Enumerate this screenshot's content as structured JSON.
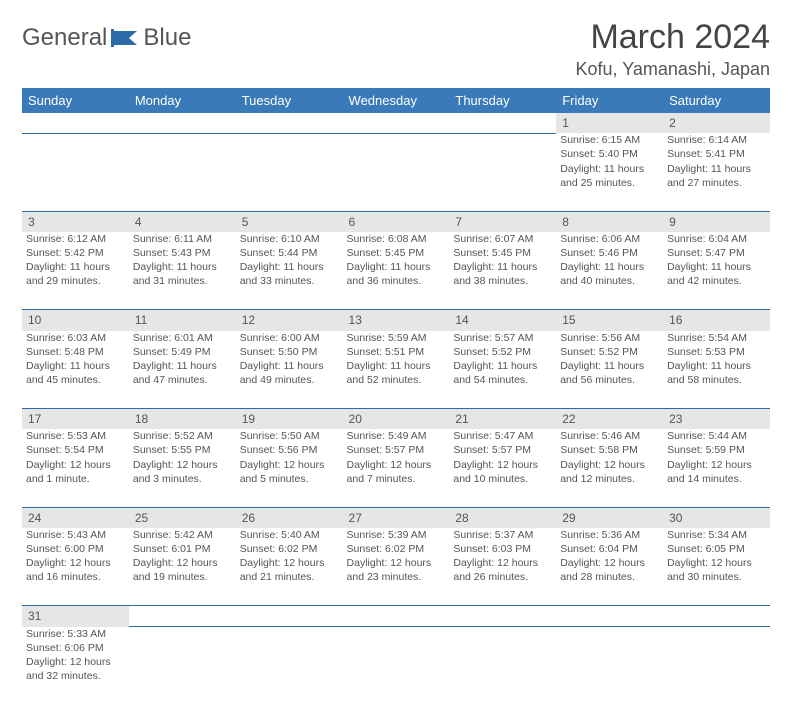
{
  "logo": {
    "word1": "General",
    "word2": "Blue"
  },
  "header": {
    "month_title": "March 2024",
    "location": "Kofu, Yamanashi, Japan"
  },
  "colors": {
    "header_bg": "#3a7ab8",
    "header_text": "#ffffff",
    "daynum_bg": "#e6e6e6",
    "cell_border": "#2d6aa8",
    "body_text": "#555555",
    "logo_blue": "#2d6aa8"
  },
  "daysOfWeek": [
    "Sunday",
    "Monday",
    "Tuesday",
    "Wednesday",
    "Thursday",
    "Friday",
    "Saturday"
  ],
  "weeks": [
    [
      null,
      null,
      null,
      null,
      null,
      {
        "n": "1",
        "sr": "6:15 AM",
        "ss": "5:40 PM",
        "dl": "11 hours and 25 minutes."
      },
      {
        "n": "2",
        "sr": "6:14 AM",
        "ss": "5:41 PM",
        "dl": "11 hours and 27 minutes."
      }
    ],
    [
      {
        "n": "3",
        "sr": "6:12 AM",
        "ss": "5:42 PM",
        "dl": "11 hours and 29 minutes."
      },
      {
        "n": "4",
        "sr": "6:11 AM",
        "ss": "5:43 PM",
        "dl": "11 hours and 31 minutes."
      },
      {
        "n": "5",
        "sr": "6:10 AM",
        "ss": "5:44 PM",
        "dl": "11 hours and 33 minutes."
      },
      {
        "n": "6",
        "sr": "6:08 AM",
        "ss": "5:45 PM",
        "dl": "11 hours and 36 minutes."
      },
      {
        "n": "7",
        "sr": "6:07 AM",
        "ss": "5:45 PM",
        "dl": "11 hours and 38 minutes."
      },
      {
        "n": "8",
        "sr": "6:06 AM",
        "ss": "5:46 PM",
        "dl": "11 hours and 40 minutes."
      },
      {
        "n": "9",
        "sr": "6:04 AM",
        "ss": "5:47 PM",
        "dl": "11 hours and 42 minutes."
      }
    ],
    [
      {
        "n": "10",
        "sr": "6:03 AM",
        "ss": "5:48 PM",
        "dl": "11 hours and 45 minutes."
      },
      {
        "n": "11",
        "sr": "6:01 AM",
        "ss": "5:49 PM",
        "dl": "11 hours and 47 minutes."
      },
      {
        "n": "12",
        "sr": "6:00 AM",
        "ss": "5:50 PM",
        "dl": "11 hours and 49 minutes."
      },
      {
        "n": "13",
        "sr": "5:59 AM",
        "ss": "5:51 PM",
        "dl": "11 hours and 52 minutes."
      },
      {
        "n": "14",
        "sr": "5:57 AM",
        "ss": "5:52 PM",
        "dl": "11 hours and 54 minutes."
      },
      {
        "n": "15",
        "sr": "5:56 AM",
        "ss": "5:52 PM",
        "dl": "11 hours and 56 minutes."
      },
      {
        "n": "16",
        "sr": "5:54 AM",
        "ss": "5:53 PM",
        "dl": "11 hours and 58 minutes."
      }
    ],
    [
      {
        "n": "17",
        "sr": "5:53 AM",
        "ss": "5:54 PM",
        "dl": "12 hours and 1 minute."
      },
      {
        "n": "18",
        "sr": "5:52 AM",
        "ss": "5:55 PM",
        "dl": "12 hours and 3 minutes."
      },
      {
        "n": "19",
        "sr": "5:50 AM",
        "ss": "5:56 PM",
        "dl": "12 hours and 5 minutes."
      },
      {
        "n": "20",
        "sr": "5:49 AM",
        "ss": "5:57 PM",
        "dl": "12 hours and 7 minutes."
      },
      {
        "n": "21",
        "sr": "5:47 AM",
        "ss": "5:57 PM",
        "dl": "12 hours and 10 minutes."
      },
      {
        "n": "22",
        "sr": "5:46 AM",
        "ss": "5:58 PM",
        "dl": "12 hours and 12 minutes."
      },
      {
        "n": "23",
        "sr": "5:44 AM",
        "ss": "5:59 PM",
        "dl": "12 hours and 14 minutes."
      }
    ],
    [
      {
        "n": "24",
        "sr": "5:43 AM",
        "ss": "6:00 PM",
        "dl": "12 hours and 16 minutes."
      },
      {
        "n": "25",
        "sr": "5:42 AM",
        "ss": "6:01 PM",
        "dl": "12 hours and 19 minutes."
      },
      {
        "n": "26",
        "sr": "5:40 AM",
        "ss": "6:02 PM",
        "dl": "12 hours and 21 minutes."
      },
      {
        "n": "27",
        "sr": "5:39 AM",
        "ss": "6:02 PM",
        "dl": "12 hours and 23 minutes."
      },
      {
        "n": "28",
        "sr": "5:37 AM",
        "ss": "6:03 PM",
        "dl": "12 hours and 26 minutes."
      },
      {
        "n": "29",
        "sr": "5:36 AM",
        "ss": "6:04 PM",
        "dl": "12 hours and 28 minutes."
      },
      {
        "n": "30",
        "sr": "5:34 AM",
        "ss": "6:05 PM",
        "dl": "12 hours and 30 minutes."
      }
    ],
    [
      {
        "n": "31",
        "sr": "5:33 AM",
        "ss": "6:06 PM",
        "dl": "12 hours and 32 minutes."
      },
      null,
      null,
      null,
      null,
      null,
      null
    ]
  ],
  "labels": {
    "sunrise": "Sunrise:",
    "sunset": "Sunset:",
    "daylight": "Daylight:"
  }
}
